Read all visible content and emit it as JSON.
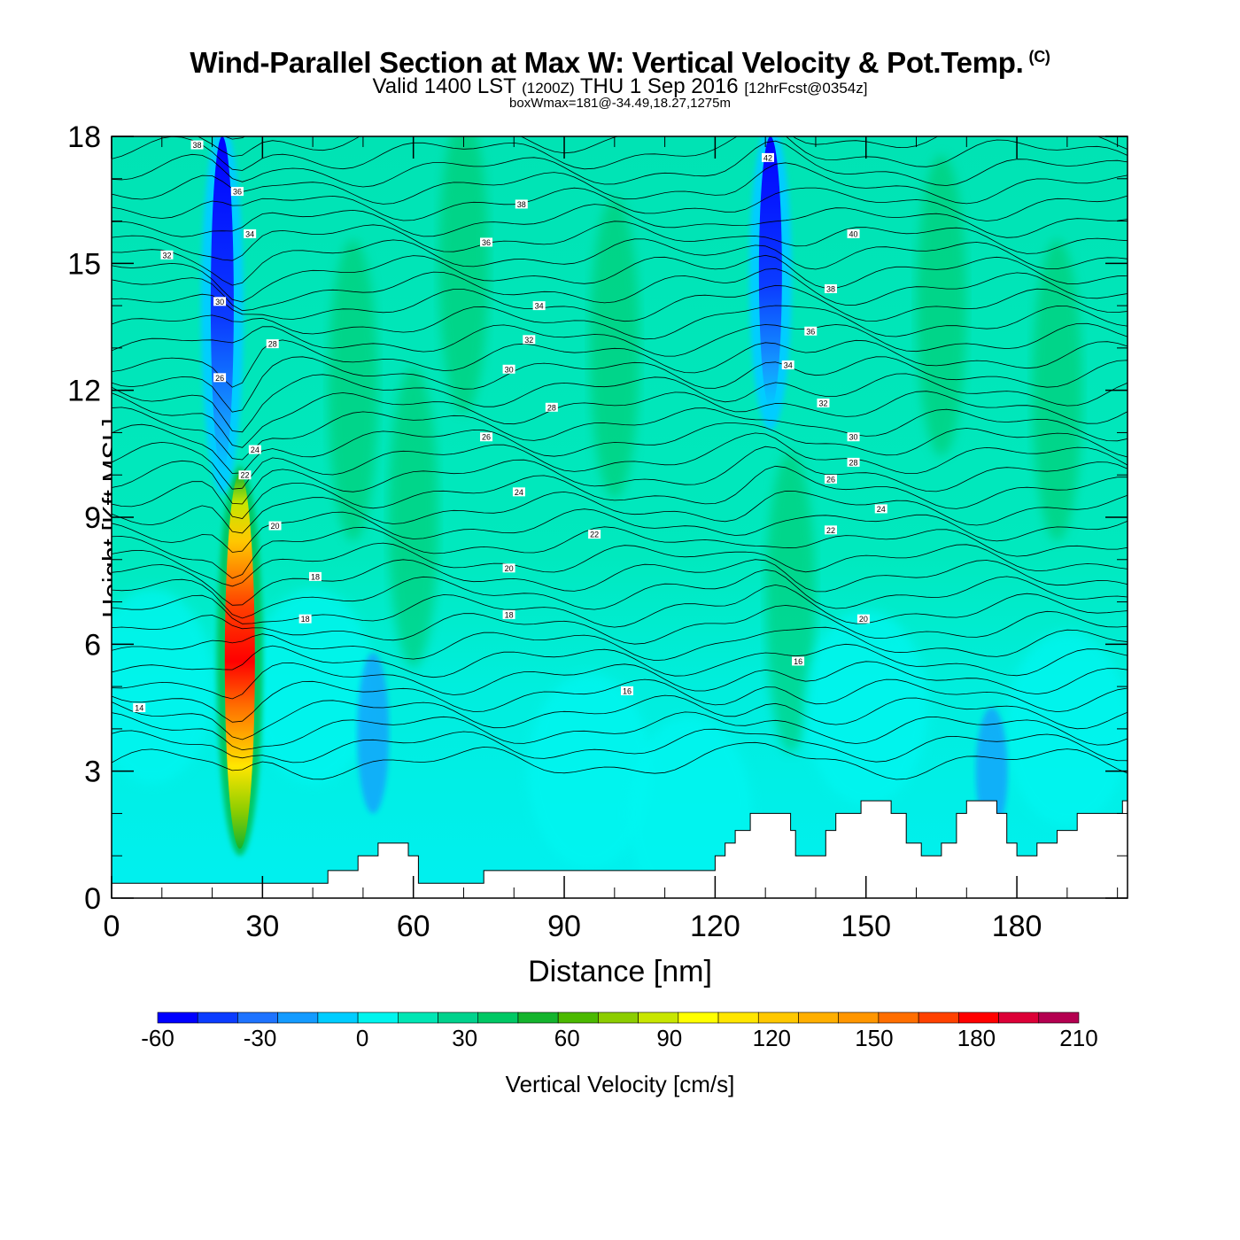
{
  "header": {
    "title": "Wind-Parallel Section at Max W: Vertical Velocity & Pot.Temp.",
    "copyright": "(C)",
    "subtitle_valid": "Valid 1400 LST",
    "subtitle_zulu": "(1200Z)",
    "subtitle_date": "THU 1 Sep 2016",
    "subtitle_fcst": "[12hrFcst@0354z]",
    "box_info": "boxWmax=181@-34.49,18.27,1275m"
  },
  "chart_data": {
    "type": "heatmap",
    "xlabel": "Distance [nm]",
    "ylabel": "Height [Kft MSL]",
    "xlim": [
      0,
      202
    ],
    "ylim": [
      0,
      18
    ],
    "x_ticks": [
      0,
      30,
      60,
      90,
      120,
      150,
      180
    ],
    "y_ticks": [
      0,
      3,
      6,
      9,
      12,
      15,
      18
    ],
    "grid": false,
    "colorbar": {
      "label": "Vertical Velocity [cm/s]",
      "ticks": [
        -60,
        -30,
        0,
        30,
        60,
        90,
        120,
        150,
        180,
        210
      ],
      "bounds": [
        -60,
        210
      ],
      "colors": [
        "#0000ff",
        "#0b3cff",
        "#1e73ff",
        "#149bff",
        "#00cdff",
        "#00f5ee",
        "#00e6b4",
        "#00d28c",
        "#00c864",
        "#14b42d",
        "#4bb900",
        "#8ccd00",
        "#c8e600",
        "#ffff00",
        "#ffe600",
        "#ffc800",
        "#ffaf00",
        "#ff9600",
        "#ff6e00",
        "#ff4100",
        "#ff0000",
        "#dc0037",
        "#b40050"
      ]
    },
    "features": [
      {
        "label": "updraft core",
        "x": 25.5,
        "y_range": [
          1.0,
          10.2
        ],
        "max_value": 181
      },
      {
        "label": "downdraft column",
        "x": 22,
        "y_range": [
          10.5,
          18
        ],
        "min_value": -60
      },
      {
        "label": "downdraft column",
        "x": 131,
        "y_range": [
          12.0,
          18
        ],
        "min_value": -60
      },
      {
        "label": "downdraft pocket",
        "x": 52,
        "y_range": [
          2.0,
          5.8
        ],
        "min_value": -30
      },
      {
        "label": "downdraft pocket",
        "x": 175,
        "y_range": [
          1.5,
          4.5
        ],
        "min_value": -30
      }
    ],
    "terrain_steps": [
      [
        0,
        0.35
      ],
      [
        43,
        0.35
      ],
      [
        43,
        0.65
      ],
      [
        49,
        0.65
      ],
      [
        49,
        1.0
      ],
      [
        53,
        1.0
      ],
      [
        53,
        1.3
      ],
      [
        59,
        1.3
      ],
      [
        59,
        1.0
      ],
      [
        61,
        1.0
      ],
      [
        61,
        0.35
      ],
      [
        74,
        0.35
      ],
      [
        74,
        0.65
      ],
      [
        120,
        0.65
      ],
      [
        120,
        1.0
      ],
      [
        122,
        1.0
      ],
      [
        122,
        1.3
      ],
      [
        124,
        1.3
      ],
      [
        124,
        1.6
      ],
      [
        127,
        1.6
      ],
      [
        127,
        2.0
      ],
      [
        135,
        2.0
      ],
      [
        135,
        1.6
      ],
      [
        136,
        1.6
      ],
      [
        136,
        1.0
      ],
      [
        142,
        1.0
      ],
      [
        142,
        1.6
      ],
      [
        144,
        1.6
      ],
      [
        144,
        2.0
      ],
      [
        149,
        2.0
      ],
      [
        149,
        2.3
      ],
      [
        155,
        2.3
      ],
      [
        155,
        2.0
      ],
      [
        158,
        2.0
      ],
      [
        158,
        1.3
      ],
      [
        161,
        1.3
      ],
      [
        161,
        1.0
      ],
      [
        165,
        1.0
      ],
      [
        165,
        1.3
      ],
      [
        168,
        1.3
      ],
      [
        168,
        2.0
      ],
      [
        170,
        2.0
      ],
      [
        170,
        2.3
      ],
      [
        176,
        2.3
      ],
      [
        176,
        2.0
      ],
      [
        178,
        2.0
      ],
      [
        178,
        1.3
      ],
      [
        180,
        1.3
      ],
      [
        180,
        1.0
      ],
      [
        184,
        1.0
      ],
      [
        184,
        1.3
      ],
      [
        188,
        1.3
      ],
      [
        188,
        1.6
      ],
      [
        192,
        1.6
      ],
      [
        192,
        2.0
      ],
      [
        201,
        2.0
      ],
      [
        201,
        2.3
      ],
      [
        202,
        2.3
      ]
    ],
    "isentrope_labels": [
      {
        "x": 17,
        "y": 17.8,
        "text": "38"
      },
      {
        "x": 25,
        "y": 16.7,
        "text": "36"
      },
      {
        "x": 27.5,
        "y": 15.7,
        "text": "34"
      },
      {
        "x": 11,
        "y": 15.2,
        "text": "32"
      },
      {
        "x": 21.5,
        "y": 14.1,
        "text": "30"
      },
      {
        "x": 32,
        "y": 13.1,
        "text": "28"
      },
      {
        "x": 21.5,
        "y": 12.3,
        "text": "26"
      },
      {
        "x": 28.5,
        "y": 10.6,
        "text": "24"
      },
      {
        "x": 26.5,
        "y": 10.0,
        "text": "22"
      },
      {
        "x": 32.5,
        "y": 8.8,
        "text": "20"
      },
      {
        "x": 40.5,
        "y": 7.6,
        "text": "18"
      },
      {
        "x": 38.5,
        "y": 6.6,
        "text": "18"
      },
      {
        "x": 5.5,
        "y": 4.5,
        "text": "14"
      },
      {
        "x": 81.5,
        "y": 16.4,
        "text": "38"
      },
      {
        "x": 74.5,
        "y": 15.5,
        "text": "36"
      },
      {
        "x": 85,
        "y": 14.0,
        "text": "34"
      },
      {
        "x": 83,
        "y": 13.2,
        "text": "32"
      },
      {
        "x": 79,
        "y": 12.5,
        "text": "30"
      },
      {
        "x": 87.5,
        "y": 11.6,
        "text": "28"
      },
      {
        "x": 74.5,
        "y": 10.9,
        "text": "26"
      },
      {
        "x": 81,
        "y": 9.6,
        "text": "24"
      },
      {
        "x": 96,
        "y": 8.6,
        "text": "22"
      },
      {
        "x": 79,
        "y": 7.8,
        "text": "20"
      },
      {
        "x": 79,
        "y": 6.7,
        "text": "18"
      },
      {
        "x": 102.5,
        "y": 4.9,
        "text": "16"
      },
      {
        "x": 130.5,
        "y": 17.5,
        "text": "42"
      },
      {
        "x": 147.5,
        "y": 15.7,
        "text": "40"
      },
      {
        "x": 143,
        "y": 14.4,
        "text": "38"
      },
      {
        "x": 139,
        "y": 13.4,
        "text": "36"
      },
      {
        "x": 134.5,
        "y": 12.6,
        "text": "34"
      },
      {
        "x": 141.5,
        "y": 11.7,
        "text": "32"
      },
      {
        "x": 147.5,
        "y": 10.9,
        "text": "30"
      },
      {
        "x": 147.5,
        "y": 10.3,
        "text": "28"
      },
      {
        "x": 143,
        "y": 9.9,
        "text": "26"
      },
      {
        "x": 153,
        "y": 9.2,
        "text": "24"
      },
      {
        "x": 143,
        "y": 8.7,
        "text": "22"
      },
      {
        "x": 149.5,
        "y": 6.6,
        "text": "20"
      },
      {
        "x": 136.5,
        "y": 5.6,
        "text": "16"
      }
    ]
  }
}
